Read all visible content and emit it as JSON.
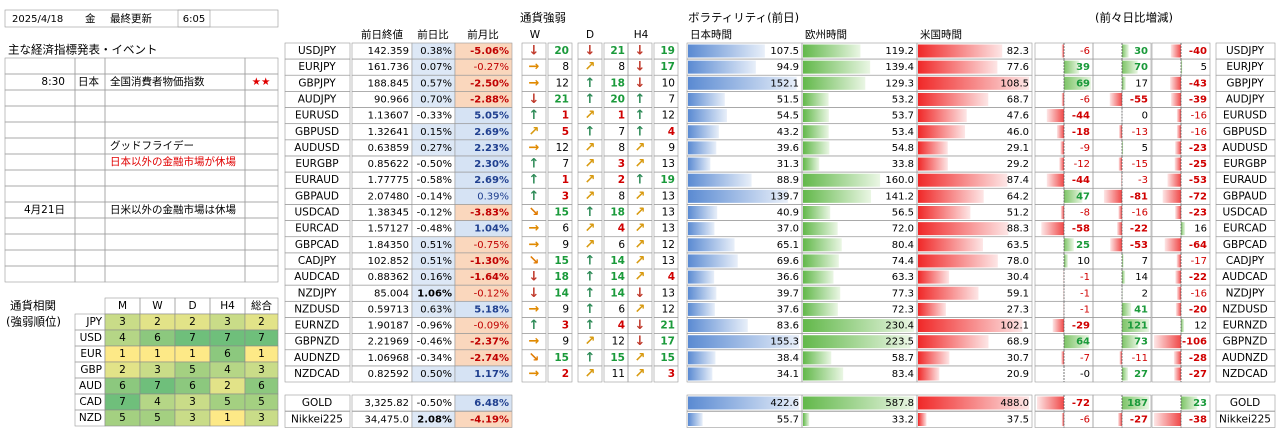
{
  "header": {
    "date": "2025/4/18",
    "weekday": "金",
    "updated_label": "最終更新",
    "time": "6:05"
  },
  "events": {
    "title": "主な経済指標発表・イベント",
    "highlight_color": "#e00000",
    "highlight_row": 6,
    "rows": [
      [
        null,
        null,
        null,
        null
      ],
      [
        "8:30",
        "日本",
        "全国消費者物価指数",
        "★★"
      ],
      [
        null,
        null,
        null,
        null
      ],
      [
        null,
        null,
        null,
        null
      ],
      [
        null,
        null,
        null,
        null
      ],
      [
        null,
        null,
        "グッドフライデー",
        null
      ],
      [
        null,
        null,
        "日本以外の金融市場が休場",
        null
      ],
      [
        null,
        null,
        null,
        null
      ],
      [
        null,
        null,
        null,
        null
      ],
      [
        "4月21日",
        null,
        "日米以外の金融市場は休場",
        null
      ],
      [
        null,
        null,
        null,
        null
      ],
      [
        null,
        null,
        null,
        null
      ],
      [
        null,
        null,
        null,
        null
      ],
      [
        null,
        null,
        null,
        null
      ]
    ]
  },
  "correlation": {
    "title": "通貨相関",
    "subtitle": "(強弱順位)",
    "columns": [
      "M",
      "W",
      "D",
      "H4",
      "総合"
    ],
    "rows": [
      {
        "currency": "JPY",
        "values": [
          3,
          2,
          2,
          3,
          2
        ]
      },
      {
        "currency": "USD",
        "values": [
          4,
          6,
          7,
          7,
          7
        ]
      },
      {
        "currency": "EUR",
        "values": [
          1,
          1,
          1,
          6,
          1
        ]
      },
      {
        "currency": "GBP",
        "values": [
          2,
          3,
          5,
          4,
          3
        ]
      },
      {
        "currency": "AUD",
        "values": [
          6,
          7,
          6,
          2,
          6
        ]
      },
      {
        "currency": "CAD",
        "values": [
          7,
          4,
          3,
          5,
          5
        ]
      },
      {
        "currency": "NZD",
        "values": [
          5,
          5,
          3,
          1,
          3
        ]
      }
    ]
  },
  "quotes": {
    "columns": [
      "前日終値",
      "前日比",
      "前月比"
    ],
    "rows": [
      {
        "pair": "USDJPY",
        "close": "142.359",
        "day": "0.38%",
        "month": "-5.06%"
      },
      {
        "pair": "EURJPY",
        "close": "161.736",
        "day": "0.07%",
        "month": "-0.27%"
      },
      {
        "pair": "GBPJPY",
        "close": "188.845",
        "day": "0.57%",
        "month": "-2.50%"
      },
      {
        "pair": "AUDJPY",
        "close": "90.966",
        "day": "0.70%",
        "month": "-2.88%"
      },
      {
        "pair": "EURUSD",
        "close": "1.13607",
        "day": "-0.33%",
        "month": "5.05%"
      },
      {
        "pair": "GBPUSD",
        "close": "1.32641",
        "day": "0.15%",
        "month": "2.69%"
      },
      {
        "pair": "AUDUSD",
        "close": "0.63859",
        "day": "0.27%",
        "month": "2.23%"
      },
      {
        "pair": "EURGBP",
        "close": "0.85622",
        "day": "-0.50%",
        "month": "2.30%"
      },
      {
        "pair": "EURAUD",
        "close": "1.77775",
        "day": "-0.58%",
        "month": "2.69%"
      },
      {
        "pair": "GBPAUD",
        "close": "2.07480",
        "day": "-0.14%",
        "month": "0.39%"
      },
      {
        "pair": "USDCAD",
        "close": "1.38345",
        "day": "-0.12%",
        "month": "-3.83%"
      },
      {
        "pair": "EURCAD",
        "close": "1.57127",
        "day": "-0.48%",
        "month": "1.04%"
      },
      {
        "pair": "GBPCAD",
        "close": "1.84350",
        "day": "0.51%",
        "month": "-0.75%"
      },
      {
        "pair": "CADJPY",
        "close": "102.852",
        "day": "0.51%",
        "month": "-1.30%"
      },
      {
        "pair": "AUDCAD",
        "close": "0.88362",
        "day": "0.16%",
        "month": "-1.64%"
      },
      {
        "pair": "NZDJPY",
        "close": "85.004",
        "day": "1.06%",
        "month": "-0.12%"
      },
      {
        "pair": "NZDUSD",
        "close": "0.59713",
        "day": "0.63%",
        "month": "5.18%"
      },
      {
        "pair": "EURNZD",
        "close": "1.90187",
        "day": "-0.96%",
        "month": "-0.09%"
      },
      {
        "pair": "GBPNZD",
        "close": "2.21969",
        "day": "-0.46%",
        "month": "-2.37%"
      },
      {
        "pair": "AUDNZD",
        "close": "1.06968",
        "day": "-0.34%",
        "month": "-2.74%"
      },
      {
        "pair": "NZDCAD",
        "close": "0.82592",
        "day": "0.50%",
        "month": "1.17%"
      },
      {
        "pair": "GOLD",
        "close": "3,325.82",
        "day": "-0.50%",
        "month": "6.48%"
      },
      {
        "pair": "Nikkei225",
        "close": "34,475.0",
        "day": "2.08%",
        "month": "-4.19%"
      }
    ]
  },
  "strength": {
    "title": "通貨強弱",
    "columns": [
      "W",
      "D",
      "H4"
    ],
    "rows": [
      [
        [
          "↓",
          20
        ],
        [
          "↓",
          21
        ],
        [
          "↓",
          19
        ]
      ],
      [
        [
          "→",
          8
        ],
        [
          "↗",
          8
        ],
        [
          "↓",
          17
        ]
      ],
      [
        [
          "→",
          12
        ],
        [
          "↑",
          18
        ],
        [
          "↓",
          10
        ]
      ],
      [
        [
          "↓",
          21
        ],
        [
          "↑",
          20
        ],
        [
          "↑",
          7
        ]
      ],
      [
        [
          "↑",
          1
        ],
        [
          "↗",
          1
        ],
        [
          "↑",
          12
        ]
      ],
      [
        [
          "↗",
          5
        ],
        [
          "↑",
          7
        ],
        [
          "↑",
          4
        ]
      ],
      [
        [
          "→",
          12
        ],
        [
          "↗",
          8
        ],
        [
          "↗",
          9
        ]
      ],
      [
        [
          "↑",
          7
        ],
        [
          "↗",
          3
        ],
        [
          "↗",
          13
        ]
      ],
      [
        [
          "↑",
          1
        ],
        [
          "↗",
          2
        ],
        [
          "↑",
          19
        ]
      ],
      [
        [
          "↑",
          3
        ],
        [
          "↗",
          8
        ],
        [
          "↗",
          13
        ]
      ],
      [
        [
          "↘",
          15
        ],
        [
          "↑",
          18
        ],
        [
          "↗",
          13
        ]
      ],
      [
        [
          "→",
          6
        ],
        [
          "↗",
          4
        ],
        [
          "↗",
          13
        ]
      ],
      [
        [
          "→",
          9
        ],
        [
          "↗",
          6
        ],
        [
          "↗",
          12
        ]
      ],
      [
        [
          "↘",
          15
        ],
        [
          "↑",
          14
        ],
        [
          "↗",
          13
        ]
      ],
      [
        [
          "↓",
          18
        ],
        [
          "↑",
          14
        ],
        [
          "↗",
          4
        ]
      ],
      [
        [
          "↓",
          14
        ],
        [
          "↑",
          14
        ],
        [
          "↓",
          13
        ]
      ],
      [
        [
          "→",
          9
        ],
        [
          "↑",
          6
        ],
        [
          "↗",
          12
        ]
      ],
      [
        [
          "↑",
          3
        ],
        [
          "↑",
          4
        ],
        [
          "↓",
          21
        ]
      ],
      [
        [
          "→",
          9
        ],
        [
          "↗",
          12
        ],
        [
          "↓",
          17
        ]
      ],
      [
        [
          "↘",
          15
        ],
        [
          "↑",
          15
        ],
        [
          "↗",
          15
        ]
      ],
      [
        [
          "→",
          2
        ],
        [
          "↗",
          11
        ],
        [
          "↗",
          3
        ]
      ]
    ]
  },
  "volatility": {
    "title": "ボラティリティ(前日)",
    "columns": [
      "日本時間",
      "欧州時間",
      "米国時間"
    ],
    "change_title": "(前々日比増減)",
    "rows": [
      {
        "values": [
          "107.5",
          "119.2",
          "82.3"
        ],
        "changes": [
          "-6",
          "30",
          "-40"
        ]
      },
      {
        "values": [
          "94.9",
          "139.4",
          "77.6"
        ],
        "changes": [
          "39",
          "70",
          "5"
        ]
      },
      {
        "values": [
          "152.1",
          "129.3",
          "108.5"
        ],
        "changes": [
          "69",
          "17",
          "-43"
        ]
      },
      {
        "values": [
          "51.5",
          "53.2",
          "68.7"
        ],
        "changes": [
          "-6",
          "-55",
          "-39"
        ]
      },
      {
        "values": [
          "54.5",
          "53.7",
          "47.6"
        ],
        "changes": [
          "-44",
          "0",
          "-16"
        ]
      },
      {
        "values": [
          "43.2",
          "53.4",
          "46.0"
        ],
        "changes": [
          "-18",
          "-13",
          "-16"
        ]
      },
      {
        "values": [
          "39.6",
          "54.8",
          "29.1"
        ],
        "changes": [
          "-9",
          "5",
          "-23"
        ]
      },
      {
        "values": [
          "31.3",
          "33.8",
          "29.2"
        ],
        "changes": [
          "-12",
          "-15",
          "-25"
        ]
      },
      {
        "values": [
          "88.9",
          "160.0",
          "87.4"
        ],
        "changes": [
          "-44",
          "-3",
          "-53"
        ]
      },
      {
        "values": [
          "139.7",
          "141.2",
          "64.2"
        ],
        "changes": [
          "47",
          "-81",
          "-72"
        ]
      },
      {
        "values": [
          "40.9",
          "56.5",
          "51.2"
        ],
        "changes": [
          "-8",
          "-16",
          "-23"
        ]
      },
      {
        "values": [
          "37.0",
          "72.0",
          "88.3"
        ],
        "changes": [
          "-58",
          "-22",
          "16"
        ]
      },
      {
        "values": [
          "65.1",
          "80.4",
          "63.5"
        ],
        "changes": [
          "25",
          "-53",
          "-64"
        ]
      },
      {
        "values": [
          "69.6",
          "74.4",
          "78.0"
        ],
        "changes": [
          "10",
          "7",
          "-17"
        ]
      },
      {
        "values": [
          "36.6",
          "63.3",
          "30.4"
        ],
        "changes": [
          "-1",
          "14",
          "-22"
        ]
      },
      {
        "values": [
          "39.7",
          "77.3",
          "59.1"
        ],
        "changes": [
          "-1",
          "2",
          "-16"
        ]
      },
      {
        "values": [
          "37.6",
          "72.3",
          "27.3"
        ],
        "changes": [
          "-1",
          "41",
          "-20"
        ]
      },
      {
        "values": [
          "83.6",
          "230.4",
          "102.1"
        ],
        "changes": [
          "-29",
          "121",
          "12"
        ]
      },
      {
        "values": [
          "155.3",
          "223.5",
          "68.9"
        ],
        "changes": [
          "64",
          "73",
          "-106"
        ]
      },
      {
        "values": [
          "38.4",
          "58.7",
          "30.7"
        ],
        "changes": [
          "-7",
          "-11",
          "-28"
        ]
      },
      {
        "values": [
          "34.1",
          "83.4",
          "20.9"
        ],
        "changes": [
          "-0",
          "27",
          "-27"
        ]
      },
      {
        "values": [
          "422.6",
          "587.8",
          "488.0"
        ],
        "changes": [
          "-72",
          "187",
          "23"
        ]
      },
      {
        "values": [
          "55.7",
          "33.2",
          "37.5"
        ],
        "changes": [
          "-6",
          "-27",
          "-38"
        ]
      }
    ]
  }
}
